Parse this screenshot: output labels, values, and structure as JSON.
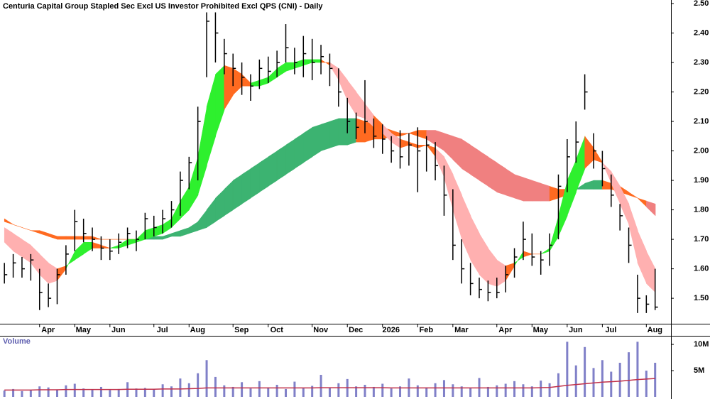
{
  "chart_data": [
    {
      "type": "hlc",
      "title": "Centuria Capital Group Stapled Sec Excl US Investor Prohibited Excl QPS (CNI) - Daily",
      "xlim": [
        -0.5,
        75.8
      ],
      "xticks": [
        {
          "value": 4,
          "label": "Apr"
        },
        {
          "value": 8,
          "label": "May"
        },
        {
          "value": 12,
          "label": "Jun"
        },
        {
          "value": 17,
          "label": "Jul"
        },
        {
          "value": 21,
          "label": "Aug"
        },
        {
          "value": 26,
          "label": "Sep"
        },
        {
          "value": 30,
          "label": "Oct"
        },
        {
          "value": 35,
          "label": "Nov"
        },
        {
          "value": 39,
          "label": "Dec"
        },
        {
          "value": 43,
          "label": "2026"
        },
        {
          "value": 47,
          "label": "Feb"
        },
        {
          "value": 51,
          "label": "Mar"
        },
        {
          "value": 56,
          "label": "Apr"
        },
        {
          "value": 60,
          "label": "May"
        },
        {
          "value": 64,
          "label": "Jun"
        },
        {
          "value": 68,
          "label": "Jul"
        },
        {
          "value": 73,
          "label": "Aug"
        }
      ],
      "ylim": [
        1.416,
        2.512
      ],
      "yticks": [
        {
          "value": 1.5,
          "label": "1.50"
        },
        {
          "value": 1.6,
          "label": "1.60"
        },
        {
          "value": 1.7,
          "label": "1.70"
        },
        {
          "value": 1.8,
          "label": "1.80"
        },
        {
          "value": 1.9,
          "label": "1.90"
        },
        {
          "value": 2.0,
          "label": "2.00"
        },
        {
          "value": 2.1,
          "label": "2.10"
        },
        {
          "value": 2.2,
          "label": "2.20"
        },
        {
          "value": 2.3,
          "label": "2.30"
        },
        {
          "value": 2.4,
          "label": "2.40"
        },
        {
          "value": 2.5,
          "label": "2.50"
        }
      ],
      "close": [
        1.58,
        1.62,
        1.6,
        1.63,
        1.52,
        1.5,
        1.58,
        1.65,
        1.76,
        1.72,
        1.7,
        1.67,
        1.66,
        1.69,
        1.72,
        1.7,
        1.77,
        1.74,
        1.77,
        1.8,
        1.9,
        1.96,
        2.1,
        2.44,
        2.4,
        2.33,
        2.28,
        2.25,
        2.22,
        2.28,
        2.27,
        2.3,
        2.35,
        2.3,
        2.33,
        2.3,
        2.32,
        2.28,
        2.2,
        2.1,
        2.08,
        2.1,
        2.05,
        2.04,
        2.0,
        1.98,
        2.02,
        2.0,
        2.02,
        1.95,
        1.85,
        1.68,
        1.6,
        1.55,
        1.53,
        1.52,
        1.52,
        1.58,
        1.64,
        1.7,
        1.64,
        1.63,
        1.68,
        1.88,
        1.98,
        2.03,
        2.2,
        2.0,
        1.94,
        1.85,
        1.78,
        1.68,
        1.5,
        1.48,
        1.47
      ],
      "high": [
        1.62,
        1.65,
        1.64,
        1.65,
        1.6,
        1.55,
        1.6,
        1.68,
        1.8,
        1.77,
        1.74,
        1.71,
        1.7,
        1.72,
        1.74,
        1.73,
        1.79,
        1.78,
        1.8,
        1.83,
        1.93,
        1.98,
        2.15,
        2.47,
        2.47,
        2.38,
        2.33,
        2.3,
        2.26,
        2.31,
        2.32,
        2.34,
        2.43,
        2.35,
        2.39,
        2.38,
        2.36,
        2.33,
        2.28,
        2.18,
        2.13,
        2.24,
        2.11,
        2.09,
        2.05,
        2.07,
        2.06,
        2.08,
        2.05,
        2.03,
        1.95,
        1.87,
        1.7,
        1.62,
        1.57,
        1.56,
        1.57,
        1.61,
        1.67,
        1.76,
        1.72,
        1.66,
        1.72,
        1.92,
        2.04,
        2.1,
        2.26,
        2.06,
        2.0,
        1.92,
        1.82,
        1.74,
        1.58,
        1.51,
        1.6
      ],
      "low": [
        1.55,
        1.57,
        1.57,
        1.56,
        1.46,
        1.47,
        1.48,
        1.58,
        1.66,
        1.69,
        1.66,
        1.63,
        1.63,
        1.65,
        1.67,
        1.66,
        1.7,
        1.71,
        1.72,
        1.74,
        1.78,
        1.87,
        1.9,
        2.25,
        2.3,
        2.26,
        2.22,
        2.19,
        2.17,
        2.21,
        2.23,
        2.25,
        2.3,
        2.26,
        2.25,
        2.24,
        2.26,
        2.22,
        2.15,
        2.06,
        2.04,
        2.06,
        2.01,
        1.99,
        1.96,
        1.94,
        1.95,
        1.86,
        1.93,
        1.9,
        1.78,
        1.63,
        1.55,
        1.51,
        1.5,
        1.49,
        1.5,
        1.52,
        1.57,
        1.63,
        1.61,
        1.58,
        1.61,
        1.7,
        1.86,
        1.96,
        2.14,
        1.94,
        1.88,
        1.81,
        1.73,
        1.62,
        1.45,
        1.45,
        1.46
      ],
      "fast_ribbon": {
        "short": [
          1.69,
          1.66,
          1.64,
          1.62,
          1.58,
          1.55,
          1.56,
          1.6,
          1.66,
          1.69,
          1.69,
          1.68,
          1.67,
          1.68,
          1.7,
          1.7,
          1.73,
          1.74,
          1.75,
          1.77,
          1.83,
          1.88,
          1.98,
          2.15,
          2.26,
          2.29,
          2.28,
          2.26,
          2.23,
          2.24,
          2.25,
          2.28,
          2.3,
          2.3,
          2.31,
          2.31,
          2.31,
          2.29,
          2.24,
          2.17,
          2.12,
          2.11,
          2.08,
          2.06,
          2.03,
          2.01,
          2.02,
          2.01,
          2.02,
          1.98,
          1.91,
          1.8,
          1.7,
          1.63,
          1.58,
          1.55,
          1.54,
          1.56,
          1.61,
          1.66,
          1.65,
          1.65,
          1.67,
          1.78,
          1.9,
          1.97,
          2.05,
          2.01,
          1.96,
          1.89,
          1.82,
          1.75,
          1.62,
          1.55,
          1.52
        ],
        "long": [
          1.74,
          1.72,
          1.7,
          1.68,
          1.65,
          1.62,
          1.6,
          1.61,
          1.63,
          1.65,
          1.67,
          1.67,
          1.67,
          1.67,
          1.68,
          1.69,
          1.7,
          1.71,
          1.72,
          1.74,
          1.77,
          1.8,
          1.85,
          1.95,
          2.05,
          2.14,
          2.19,
          2.22,
          2.22,
          2.22,
          2.23,
          2.25,
          2.27,
          2.28,
          2.29,
          2.3,
          2.3,
          2.3,
          2.28,
          2.24,
          2.2,
          2.16,
          2.12,
          2.09,
          2.06,
          2.04,
          2.03,
          2.02,
          2.02,
          2.01,
          1.98,
          1.92,
          1.85,
          1.78,
          1.72,
          1.67,
          1.63,
          1.61,
          1.62,
          1.64,
          1.65,
          1.65,
          1.66,
          1.71,
          1.78,
          1.86,
          1.94,
          1.97,
          1.96,
          1.93,
          1.88,
          1.82,
          1.73,
          1.66,
          1.6
        ]
      },
      "slow_ribbon": {
        "short": [
          1.77,
          1.75,
          1.74,
          1.73,
          1.72,
          1.71,
          1.7,
          1.7,
          1.7,
          1.7,
          1.7,
          1.7,
          1.7,
          1.7,
          1.7,
          1.7,
          1.71,
          1.71,
          1.71,
          1.72,
          1.73,
          1.74,
          1.76,
          1.8,
          1.84,
          1.87,
          1.9,
          1.92,
          1.94,
          1.96,
          1.98,
          2.0,
          2.02,
          2.04,
          2.06,
          2.08,
          2.09,
          2.1,
          2.11,
          2.11,
          2.11,
          2.1,
          2.09,
          2.08,
          2.07,
          2.06,
          2.06,
          2.05,
          2.04,
          2.02,
          2.0,
          1.97,
          1.94,
          1.92,
          1.9,
          1.88,
          1.86,
          1.85,
          1.84,
          1.83,
          1.83,
          1.83,
          1.83,
          1.84,
          1.85,
          1.87,
          1.89,
          1.9,
          1.9,
          1.89,
          1.88,
          1.86,
          1.84,
          1.81,
          1.78
        ],
        "long": [
          1.76,
          1.75,
          1.74,
          1.73,
          1.73,
          1.72,
          1.71,
          1.71,
          1.71,
          1.71,
          1.71,
          1.7,
          1.7,
          1.7,
          1.7,
          1.7,
          1.7,
          1.7,
          1.7,
          1.71,
          1.71,
          1.72,
          1.73,
          1.74,
          1.76,
          1.78,
          1.8,
          1.82,
          1.84,
          1.86,
          1.88,
          1.9,
          1.92,
          1.94,
          1.96,
          1.98,
          2.0,
          2.01,
          2.02,
          2.02,
          2.03,
          2.03,
          2.04,
          2.04,
          2.05,
          2.05,
          2.06,
          2.07,
          2.07,
          2.07,
          2.06,
          2.05,
          2.04,
          2.02,
          2.0,
          1.98,
          1.96,
          1.94,
          1.92,
          1.91,
          1.9,
          1.89,
          1.88,
          1.87,
          1.87,
          1.87,
          1.87,
          1.87,
          1.87,
          1.87,
          1.86,
          1.85,
          1.84,
          1.83,
          1.82
        ]
      },
      "colors": {
        "price": "#000000",
        "fast_up": "#2ef02e",
        "fast_down": "#ffb0b0",
        "fast_mixed": "#ff6a20",
        "slow_up": "#3cb371",
        "slow_mixed": "#ff6a20",
        "slow_down": "#f08080"
      }
    },
    {
      "type": "bar",
      "title": "Volume",
      "color": "#8080c8",
      "ma_color": "#c0304a",
      "ylim": [
        0,
        11500000
      ],
      "yticks": [
        {
          "value": 5000000,
          "label": "5M"
        },
        {
          "value": 10000000,
          "label": "10M"
        }
      ],
      "values": [
        1200000,
        1500000,
        1100000,
        1300000,
        2000000,
        1800000,
        1400000,
        2200000,
        2500000,
        1600000,
        1400000,
        1900000,
        1300000,
        1500000,
        2800000,
        1600000,
        1700000,
        1500000,
        2400000,
        2000000,
        3500000,
        2600000,
        4500000,
        7000000,
        3800000,
        2200000,
        1900000,
        2800000,
        1600000,
        3000000,
        1800000,
        2300000,
        1500000,
        2900000,
        1700000,
        2100000,
        4200000,
        1800000,
        2600000,
        3400000,
        2000000,
        2300000,
        1900000,
        2500000,
        1600000,
        2000000,
        3500000,
        2200000,
        1800000,
        2600000,
        3200000,
        2400000,
        2000000,
        1700000,
        3600000,
        1900000,
        2200000,
        2500000,
        3000000,
        2400000,
        2000000,
        3100000,
        2600000,
        4500000,
        10500000,
        6000000,
        9500000,
        5500000,
        7000000,
        4800000,
        6500000,
        8500000,
        10500000,
        5000000,
        6500000
      ],
      "ma": [
        1300000,
        1300000,
        1300000,
        1300000,
        1350000,
        1350000,
        1350000,
        1400000,
        1400000,
        1400000,
        1400000,
        1400000,
        1400000,
        1400000,
        1450000,
        1450000,
        1450000,
        1450000,
        1500000,
        1500000,
        1500000,
        1550000,
        1600000,
        1700000,
        1700000,
        1700000,
        1700000,
        1700000,
        1700000,
        1700000,
        1700000,
        1700000,
        1700000,
        1700000,
        1700000,
        1700000,
        1750000,
        1750000,
        1750000,
        1750000,
        1750000,
        1750000,
        1750000,
        1750000,
        1700000,
        1700000,
        1700000,
        1700000,
        1700000,
        1700000,
        1700000,
        1700000,
        1700000,
        1700000,
        1700000,
        1700000,
        1700000,
        1700000,
        1700000,
        1700000,
        1700000,
        1750000,
        1800000,
        2000000,
        2200000,
        2350000,
        2500000,
        2650000,
        2800000,
        2900000,
        3000000,
        3150000,
        3300000,
        3400000,
        3500000
      ]
    }
  ]
}
